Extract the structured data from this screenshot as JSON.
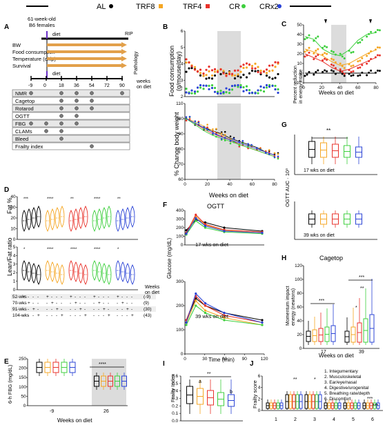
{
  "legend": [
    {
      "label": "AL",
      "color": "#000000"
    },
    {
      "label": "TRF8",
      "color": "#f5a623"
    },
    {
      "label": "TRF4",
      "color": "#e8322b"
    },
    {
      "label": "CR",
      "color": "#3dcf3d"
    },
    {
      "label": "CRx2",
      "color": "#2a43d6"
    }
  ],
  "panels": [
    "A",
    "B",
    "C",
    "D",
    "E",
    "F",
    "G",
    "H",
    "I",
    "J"
  ],
  "panelA": {
    "header_text": "61-week-old\nB6 females",
    "diet_label": "diet",
    "rip_label": "RIP",
    "timeline_items": [
      "BW",
      "Food consumption",
      "Temperature (chip)",
      "Survival"
    ],
    "pathology_label": "Pathology",
    "weeks_axis": [
      "-9",
      "0",
      "18",
      "36",
      "54",
      "72",
      "90"
    ],
    "weeks_label": "weeks\non diet",
    "assays": [
      "NMR",
      "Cagetop",
      "Rotarod",
      "OGTT",
      "FBG",
      "CLAMs",
      "Bleed",
      "Frailty index"
    ]
  },
  "chart_data": [
    {
      "panel": "B-top",
      "type": "line",
      "title": "",
      "xlabel": "Weeks on diet",
      "ylabel": "Food consumption (g/mouse/day)",
      "xlim": [
        0,
        80
      ],
      "ylim": [
        0,
        6
      ],
      "yticks": [
        "2",
        "3",
        "4",
        "5",
        "6"
      ],
      "xticks": [
        "0",
        "20",
        "40",
        "60",
        "80"
      ],
      "shaded_x": [
        25,
        43
      ],
      "series": [
        {
          "name": "AL",
          "values": [
            3.2,
            3.1,
            3.0,
            3.0,
            2.9,
            3.0,
            3.1,
            3.0,
            3.0,
            3.1,
            3.0
          ]
        },
        {
          "name": "TRF8",
          "values": [
            3.6,
            3.4,
            3.2,
            3.0,
            3.1,
            3.2,
            3.3,
            3.4,
            3.5,
            3.4,
            3.5
          ]
        },
        {
          "name": "TRF4",
          "values": [
            3.8,
            3.5,
            3.3,
            3.1,
            3.2,
            3.3,
            3.4,
            3.5,
            3.4,
            3.5,
            3.6
          ]
        },
        {
          "name": "CR",
          "values": [
            2.0,
            2.0,
            2.0,
            2.0,
            2.0,
            2.0,
            2.0,
            2.0,
            2.0,
            2.0,
            2.0
          ]
        },
        {
          "name": "CRx2",
          "values": [
            2.0,
            2.0,
            2.0,
            2.0,
            2.0,
            2.0,
            2.0,
            2.0,
            2.0,
            2.0,
            2.0
          ]
        }
      ]
    },
    {
      "panel": "B-bottom",
      "type": "line",
      "title": "",
      "xlabel": "Weeks on diet",
      "ylabel": "% Change body weight",
      "xlim": [
        0,
        80
      ],
      "ylim": [
        60,
        110
      ],
      "yticks": [
        "60",
        "70",
        "80",
        "90",
        "100",
        "110"
      ],
      "xticks": [
        "0",
        "20",
        "40",
        "60",
        "80"
      ],
      "series": [
        {
          "name": "AL",
          "values": [
            100,
            97,
            94,
            92,
            90,
            87,
            85,
            83,
            81,
            78,
            76
          ]
        },
        {
          "name": "TRF8",
          "values": [
            100,
            98,
            95,
            92,
            89,
            86,
            84,
            82,
            80,
            78,
            76
          ]
        },
        {
          "name": "TRF4",
          "values": [
            100,
            97,
            93,
            90,
            88,
            86,
            83,
            81,
            79,
            77,
            75
          ]
        },
        {
          "name": "CR",
          "values": [
            100,
            96,
            92,
            89,
            87,
            85,
            83,
            81,
            79,
            77,
            75
          ]
        },
        {
          "name": "CRx2",
          "values": [
            100,
            97,
            94,
            91,
            88,
            86,
            84,
            82,
            80,
            78,
            76
          ]
        }
      ]
    },
    {
      "panel": "C",
      "type": "scatter",
      "title": "",
      "xlabel": "Weeks on diet",
      "ylabel": "Percent reduction in energy intake",
      "xlim": [
        0,
        80
      ],
      "ylim": [
        -10,
        50
      ],
      "yticks": [
        "-10",
        "0",
        "10",
        "20",
        "30",
        "40",
        "50"
      ],
      "xticks": [
        "0",
        "20",
        "40",
        "60",
        "80"
      ],
      "shaded_x": [
        25,
        43
      ],
      "arrows_x": [
        20,
        72
      ],
      "series": [
        {
          "name": "AL",
          "values": [
            0,
            0,
            0,
            0,
            0,
            0,
            0,
            0,
            0
          ]
        },
        {
          "name": "TRF8",
          "values": [
            25,
            22,
            18,
            12,
            8,
            10,
            15,
            20,
            24
          ]
        },
        {
          "name": "TRF4",
          "values": [
            20,
            16,
            12,
            6,
            2,
            4,
            8,
            12,
            16
          ]
        },
        {
          "name": "CR",
          "values": [
            38,
            35,
            25,
            20,
            18,
            24,
            34,
            40,
            42
          ]
        }
      ]
    },
    {
      "panel": "D-top",
      "type": "box",
      "ylabel": "Fat %",
      "ylim": [
        0,
        40
      ],
      "yticks": [
        "0",
        "10",
        "20",
        "30",
        "40"
      ],
      "groups": [
        "AL",
        "TRF8",
        "TRF4",
        "CR",
        "CRx2"
      ]
    },
    {
      "panel": "D-bottom",
      "type": "box",
      "ylabel": "Lean/Fat ratio",
      "ylim": [
        0,
        5
      ],
      "yticks": [
        "0",
        "1",
        "2",
        "3",
        "4",
        "5"
      ],
      "groups": [
        "AL",
        "TRF8",
        "TRF4",
        "CR",
        "CRx2"
      ],
      "row_labels": [
        "52-wks",
        "70-wks",
        "91-wks",
        "104-wks"
      ],
      "weeks": [
        "(-9)",
        "(9)",
        "(30)",
        "(43)"
      ],
      "weeks_header": "Weeks\non diet"
    },
    {
      "panel": "E",
      "type": "box",
      "ylabel": "6-h FBG (mg/dL)",
      "xlabel": "Weeks on diet",
      "ylim": [
        0,
        250
      ],
      "yticks": [
        "0",
        "50",
        "100",
        "150",
        "200",
        "250"
      ],
      "categories": [
        "-9",
        "26"
      ],
      "significance": "****"
    },
    {
      "panel": "F-top",
      "type": "line",
      "title": "OGTT",
      "note": "17 wks on diet",
      "ylim": [
        0,
        400
      ],
      "yticks": [
        "0",
        "100",
        "200",
        "300",
        "400"
      ],
      "x": [
        0,
        15,
        30,
        60,
        120
      ],
      "series": [
        {
          "name": "AL",
          "values": [
            170,
            290,
            260,
            200,
            160
          ]
        },
        {
          "name": "TRF8",
          "values": [
            140,
            330,
            230,
            170,
            140
          ]
        },
        {
          "name": "TRF4",
          "values": [
            140,
            350,
            240,
            175,
            150
          ]
        },
        {
          "name": "CR",
          "values": [
            120,
            280,
            200,
            150,
            130
          ]
        },
        {
          "name": "CRx2",
          "values": [
            130,
            310,
            220,
            160,
            140
          ]
        }
      ]
    },
    {
      "panel": "F-bottom",
      "type": "line",
      "note": "39 wks on diet",
      "xlabel": "Time (min)",
      "ylabel": "Glucose (mg/dL)",
      "ylim": [
        0,
        300
      ],
      "yticks": [
        "0",
        "100",
        "200",
        "300"
      ],
      "x": [
        0,
        15,
        30,
        60,
        120
      ],
      "xticks": [
        "0",
        "30",
        "60",
        "90",
        "120"
      ],
      "series": [
        {
          "name": "AL",
          "values": [
            140,
            230,
            200,
            170,
            140
          ]
        },
        {
          "name": "TRF8",
          "values": [
            130,
            220,
            180,
            150,
            120
          ]
        },
        {
          "name": "TRF4",
          "values": [
            140,
            240,
            200,
            160,
            130
          ]
        },
        {
          "name": "CR",
          "values": [
            120,
            200,
            170,
            140,
            120
          ]
        },
        {
          "name": "CRx2",
          "values": [
            130,
            250,
            210,
            170,
            130
          ]
        }
      ]
    },
    {
      "panel": "G",
      "type": "box",
      "ylabel": "OGTT AUC · 10³",
      "notes": [
        "17 wks on diet",
        "39 wks on diet"
      ],
      "significance": "**"
    },
    {
      "panel": "H",
      "type": "box",
      "title": "Cagetop",
      "ylabel": "Momentum impact energy (newtons)",
      "xlabel": "Weeks on diet",
      "categories": [
        "17",
        "39"
      ],
      "ylim": [
        0,
        120
      ],
      "yticks": [
        "0",
        "20",
        "40",
        "60",
        "80",
        "100",
        "120"
      ],
      "significance": [
        "***",
        "***",
        "**",
        "*"
      ]
    },
    {
      "panel": "I",
      "type": "box",
      "ylabel": "Frailty Index",
      "ylim": [
        0,
        0.6
      ],
      "yticks": [
        "0.0",
        "0.1",
        "0.2",
        "0.3",
        "0.4",
        "0.5",
        "0.6"
      ],
      "annotations": [
        "a",
        "b"
      ],
      "significance": "**"
    },
    {
      "panel": "J",
      "type": "box",
      "ylabel": "Frailty score",
      "ylim": [
        0,
        6
      ],
      "yticks": [
        "0",
        "2",
        "4",
        "6"
      ],
      "categories": [
        "1",
        "2",
        "3",
        "4",
        "5",
        "6"
      ],
      "legend_items": [
        "1. Integumentary",
        "2. Musculoskeletal",
        "3. Ear/eye/nasal",
        "4. Digestive/urogenital",
        "5. Breathing rate/depth",
        "6. Discomfort"
      ],
      "significance": [
        "**",
        "*",
        "***",
        "***"
      ]
    }
  ]
}
